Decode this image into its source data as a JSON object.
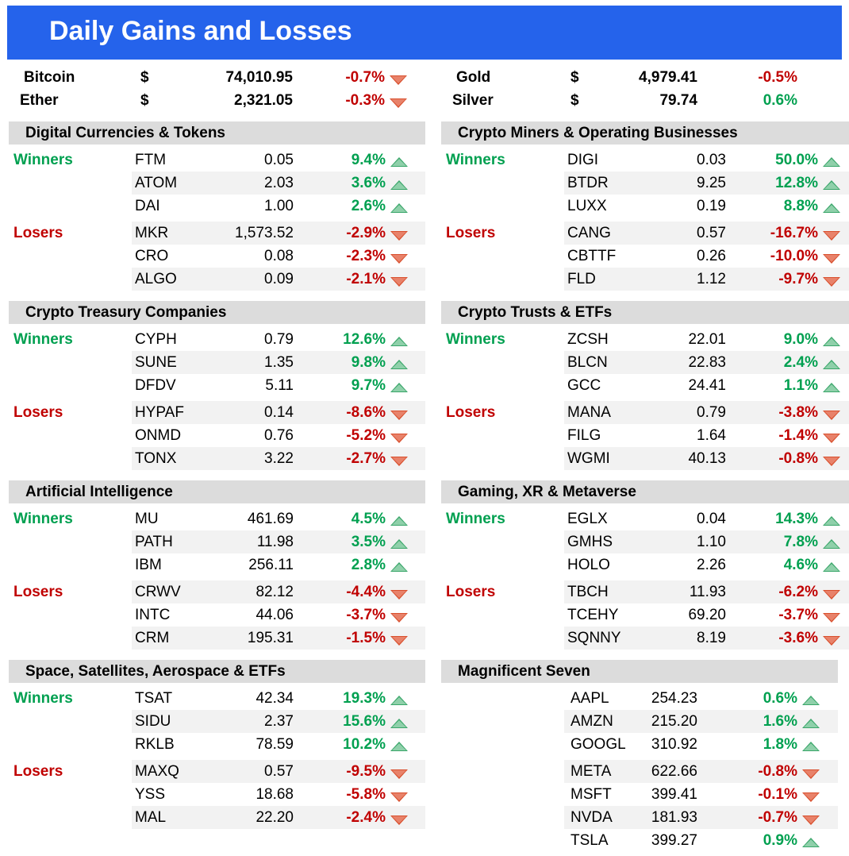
{
  "title": "Daily Gains and Losses",
  "colors": {
    "header_bg": "#2563eb",
    "section_bg": "#dcdcdc",
    "stripe_bg": "#f2f2f2",
    "gain": "#00a050",
    "loss": "#c00000"
  },
  "top": {
    "left": [
      {
        "name": "Bitcoin",
        "cur": "$",
        "price": "74,010.95",
        "change": "-0.7%",
        "dir": "down"
      },
      {
        "name": "Ether",
        "cur": "$",
        "price": "2,321.05",
        "change": "-0.3%",
        "dir": "down"
      }
    ],
    "right": [
      {
        "name": "Gold",
        "cur": "$",
        "price": "4,979.41",
        "change": "-0.5%",
        "dir": "down"
      },
      {
        "name": "Silver",
        "cur": "$",
        "price": "79.74",
        "change": "0.6%",
        "dir": "up"
      }
    ]
  },
  "labels": {
    "winners": "Winners",
    "losers": "Losers"
  },
  "sections": [
    {
      "title": "Digital Currencies & Tokens",
      "winners": [
        {
          "ticker": "FTM",
          "price": "0.05",
          "change": "9.4%"
        },
        {
          "ticker": "ATOM",
          "price": "2.03",
          "change": "3.6%"
        },
        {
          "ticker": "DAI",
          "price": "1.00",
          "change": "2.6%"
        }
      ],
      "losers": [
        {
          "ticker": "MKR",
          "price": "1,573.52",
          "change": "-2.9%"
        },
        {
          "ticker": "CRO",
          "price": "0.08",
          "change": "-2.3%"
        },
        {
          "ticker": "ALGO",
          "price": "0.09",
          "change": "-2.1%"
        }
      ]
    },
    {
      "title": "Crypto Miners & Operating Businesses",
      "winners": [
        {
          "ticker": "DIGI",
          "price": "0.03",
          "change": "50.0%"
        },
        {
          "ticker": "BTDR",
          "price": "9.25",
          "change": "12.8%"
        },
        {
          "ticker": "LUXX",
          "price": "0.19",
          "change": "8.8%"
        }
      ],
      "losers": [
        {
          "ticker": "CANG",
          "price": "0.57",
          "change": "-16.7%"
        },
        {
          "ticker": "CBTTF",
          "price": "0.26",
          "change": "-10.0%"
        },
        {
          "ticker": "FLD",
          "price": "1.12",
          "change": "-9.7%"
        }
      ]
    },
    {
      "title": "Crypto Treasury Companies",
      "winners": [
        {
          "ticker": "CYPH",
          "price": "0.79",
          "change": "12.6%"
        },
        {
          "ticker": "SUNE",
          "price": "1.35",
          "change": "9.8%"
        },
        {
          "ticker": "DFDV",
          "price": "5.11",
          "change": "9.7%"
        }
      ],
      "losers": [
        {
          "ticker": "HYPAF",
          "price": "0.14",
          "change": "-8.6%"
        },
        {
          "ticker": "ONMD",
          "price": "0.76",
          "change": "-5.2%"
        },
        {
          "ticker": "TONX",
          "price": "3.22",
          "change": "-2.7%"
        }
      ]
    },
    {
      "title": "Crypto Trusts & ETFs",
      "winners": [
        {
          "ticker": "ZCSH",
          "price": "22.01",
          "change": "9.0%"
        },
        {
          "ticker": "BLCN",
          "price": "22.83",
          "change": "2.4%"
        },
        {
          "ticker": "GCC",
          "price": "24.41",
          "change": "1.1%"
        }
      ],
      "losers": [
        {
          "ticker": "MANA",
          "price": "0.79",
          "change": "-3.8%"
        },
        {
          "ticker": "FILG",
          "price": "1.64",
          "change": "-1.4%"
        },
        {
          "ticker": "WGMI",
          "price": "40.13",
          "change": "-0.8%"
        }
      ]
    },
    {
      "title": "Artificial Intelligence",
      "winners": [
        {
          "ticker": "MU",
          "price": "461.69",
          "change": "4.5%"
        },
        {
          "ticker": "PATH",
          "price": "11.98",
          "change": "3.5%"
        },
        {
          "ticker": "IBM",
          "price": "256.11",
          "change": "2.8%"
        }
      ],
      "losers": [
        {
          "ticker": "CRWV",
          "price": "82.12",
          "change": "-4.4%"
        },
        {
          "ticker": "INTC",
          "price": "44.06",
          "change": "-3.7%"
        },
        {
          "ticker": "CRM",
          "price": "195.31",
          "change": "-1.5%"
        }
      ]
    },
    {
      "title": "Gaming, XR & Metaverse",
      "winners": [
        {
          "ticker": "EGLX",
          "price": "0.04",
          "change": "14.3%"
        },
        {
          "ticker": "GMHS",
          "price": "1.10",
          "change": "7.8%"
        },
        {
          "ticker": "HOLO",
          "price": "2.26",
          "change": "4.6%"
        }
      ],
      "losers": [
        {
          "ticker": "TBCH",
          "price": "11.93",
          "change": "-6.2%"
        },
        {
          "ticker": "TCEHY",
          "price": "69.20",
          "change": "-3.7%"
        },
        {
          "ticker": "SQNNY",
          "price": "8.19",
          "change": "-3.6%"
        }
      ]
    },
    {
      "title": "Space, Satellites,  Aerospace & ETFs",
      "winners": [
        {
          "ticker": "TSAT",
          "price": "42.34",
          "change": "19.3%"
        },
        {
          "ticker": "SIDU",
          "price": "2.37",
          "change": "15.6%"
        },
        {
          "ticker": "RKLB",
          "price": "78.59",
          "change": "10.2%"
        }
      ],
      "losers": [
        {
          "ticker": "MAXQ",
          "price": "0.57",
          "change": "-9.5%"
        },
        {
          "ticker": "YSS",
          "price": "18.68",
          "change": "-5.8%"
        },
        {
          "ticker": "MAL",
          "price": "22.20",
          "change": "-2.4%"
        }
      ]
    }
  ],
  "mag7": {
    "title": "Magnificent Seven",
    "rows": [
      {
        "ticker": "AAPL",
        "price": "254.23",
        "change": "0.6%",
        "dir": "up"
      },
      {
        "ticker": "AMZN",
        "price": "215.20",
        "change": "1.6%",
        "dir": "up"
      },
      {
        "ticker": "GOOGL",
        "price": "310.92",
        "change": "1.8%",
        "dir": "up"
      },
      {
        "ticker": "META",
        "price": "622.66",
        "change": "-0.8%",
        "dir": "down"
      },
      {
        "ticker": "MSFT",
        "price": "399.41",
        "change": "-0.1%",
        "dir": "down"
      },
      {
        "ticker": "NVDA",
        "price": "181.93",
        "change": "-0.7%",
        "dir": "down"
      },
      {
        "ticker": "TSLA",
        "price": "399.27",
        "change": "0.9%",
        "dir": "up"
      }
    ]
  }
}
